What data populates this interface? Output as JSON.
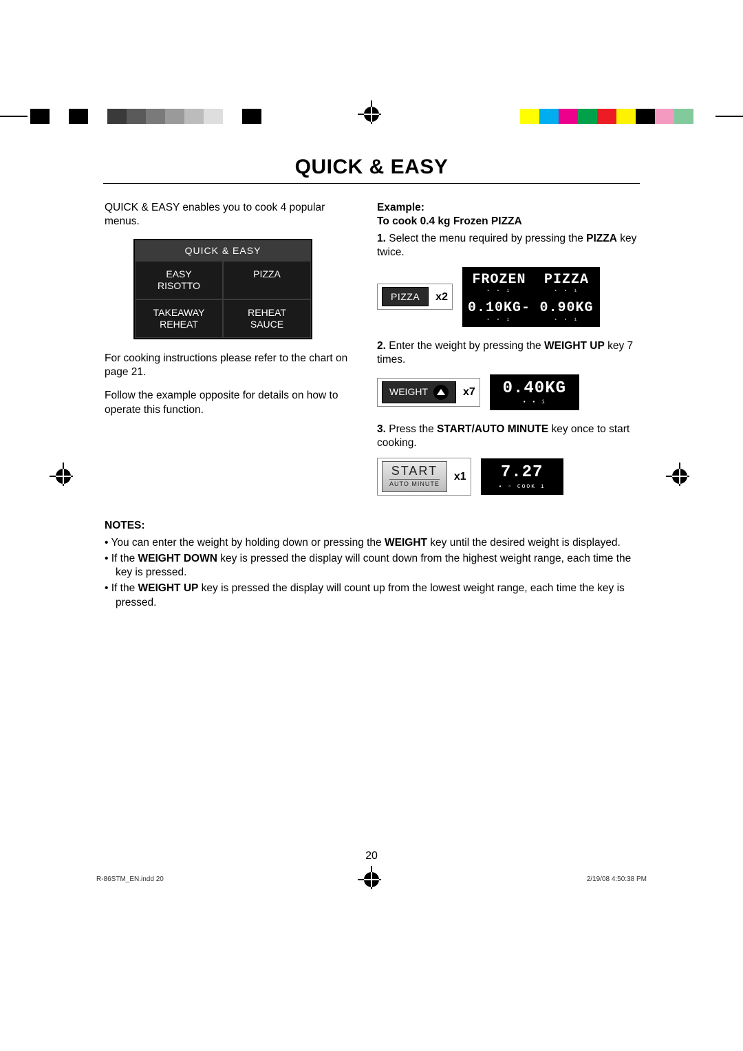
{
  "colorbars": {
    "left_colors": [
      "#000000",
      "#ffffff",
      "#000000",
      "#ffffff",
      "#3a3a3a",
      "#5a5a5a",
      "#7a7a7a",
      "#9a9a9a",
      "#bcbcbc",
      "#dedede",
      "#ffffff",
      "#000000"
    ],
    "right_colors": [
      "#ffff00",
      "#00aeef",
      "#ec008c",
      "#00a14b",
      "#ed1c24",
      "#fff200",
      "#000000",
      "#f49ac1",
      "#82ca9c",
      "#ffffff"
    ]
  },
  "title": "QUICK & EASY",
  "left": {
    "intro": "QUICK & EASY enables you to cook 4 popular menus.",
    "menu_header": "QUICK & EASY",
    "menu_cells": [
      "EASY\nRISOTTO",
      "PIZZA",
      "TAKEAWAY\nREHEAT",
      "REHEAT\nSAUCE"
    ],
    "p2": "For cooking instructions please refer to the chart on page 21.",
    "p3": "Follow the example opposite for details on how to operate this function."
  },
  "right": {
    "example_hdr": "Example:",
    "example_sub": "To cook 0.4 kg Frozen PIZZA",
    "step1_pre": "1. ",
    "step1_a": "Select the menu required by pressing the ",
    "step1_bold": "PIZZA",
    "step1_b": " key twice.",
    "step1_btn": "PIZZA",
    "step1_mult": "x2",
    "lcd1": {
      "tl": "FROZEN",
      "tr": "PIZZA",
      "bl": "0.10KG-",
      "br": "0.90KG"
    },
    "step2_pre": "2. ",
    "step2_a": "Enter the weight by pressing the ",
    "step2_bold": "WEIGHT UP",
    "step2_b": " key 7 times.",
    "step2_btn": "WEIGHT",
    "step2_mult": "x7",
    "lcd2": "0.40KG",
    "step3_pre": "3. ",
    "step3_a": "Press the ",
    "step3_bold": "START/AUTO MINUTE",
    "step3_b": " key once to start cooking.",
    "step3_btn_top": "START",
    "step3_btn_bot": "AUTO MINUTE",
    "step3_mult": "x1",
    "lcd3": "7.27",
    "lcd3_sub": "COOK"
  },
  "notes": {
    "header": "NOTES:",
    "items": [
      {
        "pre": "You can enter the weight by holding down or pressing the ",
        "bold": "WEIGHT",
        "post": " key until the desired weight is displayed."
      },
      {
        "pre": "If the ",
        "bold": "WEIGHT DOWN",
        "post": " key is pressed the display will count down from the highest weight range, each time the key is pressed."
      },
      {
        "pre": "If the ",
        "bold": "WEIGHT UP",
        "post": " key is pressed the display will count up from the lowest weight range, each time the key is pressed."
      }
    ]
  },
  "page_number": "20",
  "footer_left": "R-86STM_EN.indd   20",
  "footer_right": "2/19/08   4:50:38 PM"
}
